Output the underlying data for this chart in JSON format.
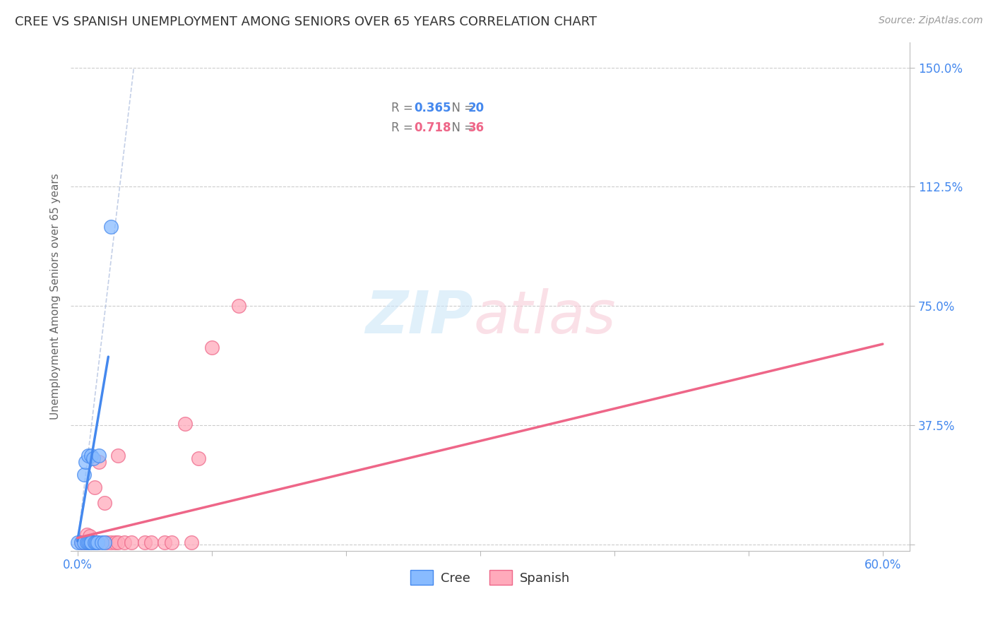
{
  "title": "CREE VS SPANISH UNEMPLOYMENT AMONG SENIORS OVER 65 YEARS CORRELATION CHART",
  "source": "Source: ZipAtlas.com",
  "ylabel": "Unemployment Among Seniors over 65 years",
  "yticks": [
    0.0,
    0.375,
    0.75,
    1.125,
    1.5
  ],
  "ytick_labels": [
    "",
    "37.5%",
    "75.0%",
    "112.5%",
    "150.0%"
  ],
  "xticks": [
    0.0,
    0.1,
    0.2,
    0.3,
    0.4,
    0.5,
    0.6
  ],
  "xlim": [
    -0.005,
    0.62
  ],
  "ylim": [
    -0.02,
    1.58
  ],
  "cree_R": 0.365,
  "cree_N": 20,
  "spanish_R": 0.718,
  "spanish_N": 36,
  "cree_color": "#88bbff",
  "cree_color_dark": "#4488ee",
  "spanish_color": "#ffaabb",
  "spanish_color_dark": "#ee6688",
  "cree_scatter_x": [
    0.0,
    0.003,
    0.005,
    0.005,
    0.006,
    0.007,
    0.008,
    0.008,
    0.009,
    0.01,
    0.01,
    0.01,
    0.012,
    0.013,
    0.014,
    0.015,
    0.016,
    0.018,
    0.02,
    0.025
  ],
  "cree_scatter_y": [
    0.005,
    0.005,
    0.005,
    0.22,
    0.26,
    0.005,
    0.005,
    0.28,
    0.005,
    0.005,
    0.28,
    0.005,
    0.27,
    0.005,
    0.005,
    0.005,
    0.28,
    0.005,
    0.005,
    1.0
  ],
  "spanish_scatter_x": [
    0.003,
    0.004,
    0.005,
    0.006,
    0.007,
    0.007,
    0.008,
    0.008,
    0.009,
    0.009,
    0.01,
    0.01,
    0.011,
    0.012,
    0.013,
    0.013,
    0.014,
    0.015,
    0.016,
    0.02,
    0.022,
    0.025,
    0.028,
    0.03,
    0.03,
    0.035,
    0.04,
    0.05,
    0.055,
    0.065,
    0.07,
    0.08,
    0.085,
    0.09,
    0.1,
    0.12
  ],
  "spanish_scatter_y": [
    0.005,
    0.005,
    0.005,
    0.005,
    0.005,
    0.03,
    0.005,
    0.005,
    0.005,
    0.025,
    0.005,
    0.005,
    0.005,
    0.005,
    0.005,
    0.18,
    0.005,
    0.005,
    0.26,
    0.13,
    0.005,
    0.005,
    0.005,
    0.28,
    0.005,
    0.005,
    0.005,
    0.005,
    0.005,
    0.005,
    0.005,
    0.38,
    0.005,
    0.27,
    0.62,
    0.75
  ],
  "cree_regline_x": [
    0.0,
    0.023
  ],
  "cree_regline_y": [
    0.01,
    0.59
  ],
  "spanish_regline_x": [
    0.0,
    0.6
  ],
  "spanish_regline_y": [
    0.02,
    0.63
  ],
  "ref_line_x": [
    0.0,
    0.042
  ],
  "ref_line_y": [
    0.0,
    1.5
  ],
  "background_color": "#ffffff",
  "grid_color": "#cccccc"
}
